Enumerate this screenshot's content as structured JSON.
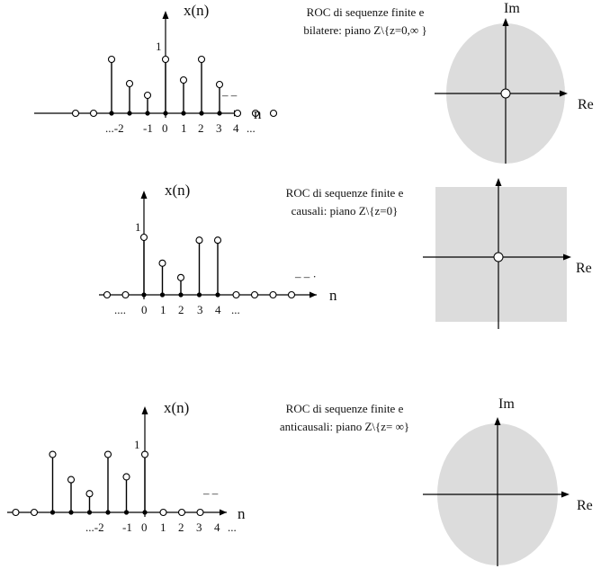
{
  "panels": [
    {
      "id": "bilatere",
      "seq_label": "x(n)",
      "axis_label": "n",
      "one_label": "1",
      "tick_labels": [
        "...-2",
        "-1",
        "0",
        "1",
        "2",
        "3",
        "4",
        "..."
      ],
      "dash_label": "– –",
      "caption_line1": "ROC di sequenze finite e",
      "caption_line2": "bilatere: piano Z\\{z=0,∞ }",
      "re_label": "Re",
      "im_label": "Im",
      "roc_shape": "ellipse",
      "origin_hole": true,
      "samples": [
        {
          "n": -5,
          "value": 0
        },
        {
          "n": -4,
          "value": 0
        },
        {
          "n": -3,
          "value": 0.6
        },
        {
          "n": -2,
          "value": 0.33
        },
        {
          "n": -1,
          "value": 0.2
        },
        {
          "n": 0,
          "value": 0.6
        },
        {
          "n": 1,
          "value": 0.37
        },
        {
          "n": 2,
          "value": 0.6
        },
        {
          "n": 3,
          "value": 0.32
        },
        {
          "n": 4,
          "value": 0
        },
        {
          "n": 5,
          "value": 0
        },
        {
          "n": 6,
          "value": 0
        }
      ]
    },
    {
      "id": "causali",
      "seq_label": "x(n)",
      "axis_label": "n",
      "one_label": "1",
      "tick_labels": [
        "....",
        "0",
        "1",
        "2",
        "3",
        "4",
        "..."
      ],
      "dash_label": "– – ·",
      "caption_line1": "ROC di sequenze finite e",
      "caption_line2": "causali: piano Z\\{z=0}",
      "re_label": "Re",
      "im_label": "",
      "roc_shape": "rect",
      "origin_hole": true,
      "samples": [
        {
          "n": -2,
          "value": 0
        },
        {
          "n": -1,
          "value": 0
        },
        {
          "n": 0,
          "value": 1
        },
        {
          "n": 1,
          "value": 0.55
        },
        {
          "n": 2,
          "value": 0.3
        },
        {
          "n": 3,
          "value": 0.95
        },
        {
          "n": 4,
          "value": 0.95
        },
        {
          "n": 5,
          "value": 0
        },
        {
          "n": 6,
          "value": 0
        },
        {
          "n": 7,
          "value": 0
        },
        {
          "n": 8,
          "value": 0
        }
      ]
    },
    {
      "id": "anticausali",
      "seq_label": "x(n)",
      "axis_label": "n",
      "one_label": "1",
      "tick_labels": [
        "...-2",
        "-1",
        "0",
        "1",
        "2",
        "3",
        "4",
        "..."
      ],
      "dash_label": "– –",
      "caption_line1": "ROC di sequenze finite e",
      "caption_line2": "anticausali: piano Z\\{z= ∞}",
      "re_label": "Re",
      "im_label": "Im",
      "roc_shape": "ellipse",
      "origin_hole": false,
      "samples": [
        {
          "n": -7,
          "value": 0
        },
        {
          "n": -6,
          "value": 0
        },
        {
          "n": -5,
          "value": 0.62
        },
        {
          "n": -4,
          "value": 0.35
        },
        {
          "n": -3,
          "value": 0.2
        },
        {
          "n": -2,
          "value": 0.62
        },
        {
          "n": -1,
          "value": 0.38
        },
        {
          "n": 0,
          "value": 0.62
        },
        {
          "n": 1,
          "value": 0
        },
        {
          "n": 2,
          "value": 0
        },
        {
          "n": 3,
          "value": 0
        }
      ]
    }
  ]
}
